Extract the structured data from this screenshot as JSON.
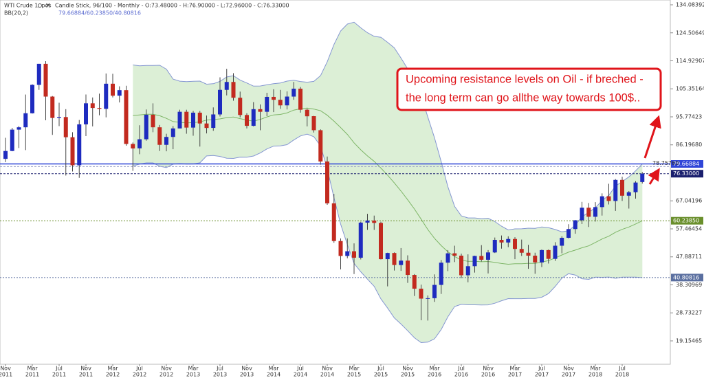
{
  "header": {
    "instrument": "WTI Crude 1, pos",
    "info": "Candle Stick, 96/100 - Monthly - O:73.48000 - H:76.90000 - L:72.96000 - C:76.33000",
    "indicator": "BB(20,2)",
    "indicator_values": "79.66884/60.23850/40.80816"
  },
  "chart_data": {
    "type": "candlestick",
    "open": [
      81.4,
      84.1,
      91.4,
      92.2,
      97.0,
      106.7,
      113.9,
      102.7,
      95.4,
      95.7,
      88.8,
      79.2,
      93.2,
      100.4,
      98.8,
      98.5,
      107.1,
      103.0,
      104.9,
      86.5,
      85.0,
      88.1,
      96.5,
      92.2,
      86.2,
      88.9,
      91.8,
      97.5,
      92.1,
      97.2,
      93.5,
      92.0,
      96.6,
      105.0,
      107.7,
      102.3,
      96.4,
      92.7,
      98.4,
      97.5,
      102.6,
      101.6,
      99.7,
      102.7,
      105.4,
      98.2,
      96.0,
      91.2,
      80.5,
      66.2,
      53.3,
      48.2,
      49.8,
      47.6,
      59.6,
      60.3,
      59.5,
      47.1,
      49.2,
      45.1,
      46.6,
      41.7,
      37.0,
      33.6,
      33.75,
      38.3,
      45.9,
      49.1,
      48.3,
      41.6,
      44.7,
      48.2,
      46.9,
      49.4,
      53.7,
      52.8,
      54.0,
      50.6,
      49.3,
      48.3,
      46.0,
      50.2,
      47.2,
      51.7,
      54.4,
      57.4,
      60.4,
      64.7,
      61.6,
      64.9,
      68.6,
      67.0,
      74.2,
      68.8,
      70.0,
      73.48
    ],
    "high": [
      88.6,
      92.0,
      92.6,
      103.4,
      106.9,
      113.9,
      114.8,
      102.9,
      100.6,
      98.4,
      90.5,
      94.7,
      103.4,
      102.4,
      103.7,
      110.6,
      110.5,
      106.2,
      106.4,
      87.0,
      92.9,
      98.3,
      100.4,
      93.0,
      90.0,
      92.6,
      98.2,
      98.2,
      97.8,
      97.8,
      96.2,
      99.0,
      109.3,
      112.2,
      110.7,
      104.4,
      97.0,
      100.8,
      100.0,
      104.0,
      105.2,
      104.99,
      104.5,
      107.7,
      106.0,
      98.6,
      96.1,
      91.5,
      82.2,
      69.4,
      54.2,
      54.2,
      52.5,
      59.9,
      62.6,
      62.0,
      59.9,
      49.3,
      49.4,
      50.9,
      48.4,
      42.0,
      38.4,
      34.7,
      41.9,
      46.8,
      50.2,
      51.7,
      49.0,
      48.75,
      48.3,
      51.9,
      50.2,
      54.5,
      55.2,
      54.9,
      54.6,
      53.8,
      52.0,
      49.3,
      50.4,
      50.4,
      52.9,
      54.9,
      59.05,
      60.5,
      66.7,
      66.3,
      66.6,
      69.6,
      72.9,
      74.5,
      75.3,
      70.4,
      73.8,
      76.9
    ],
    "low": [
      80.3,
      84.0,
      85.1,
      84.4,
      96.9,
      105.0,
      94.6,
      89.6,
      92.6,
      75.7,
      77.1,
      74.9,
      89.2,
      92.5,
      96.3,
      95.6,
      102.4,
      100.7,
      85.9,
      77.3,
      83.0,
      87.6,
      90.5,
      84.1,
      84.0,
      84.7,
      91.8,
      90.0,
      89.3,
      85.6,
      90.1,
      91.0,
      95.9,
      103.1,
      101.3,
      95.6,
      91.8,
      92.5,
      91.2,
      96.0,
      97.4,
      98.5,
      98.3,
      101.6,
      97.2,
      92.5,
      90.4,
      79.4,
      65.7,
      52.7,
      43.6,
      47.4,
      42.0,
      47.0,
      57.1,
      57.1,
      47.0,
      37.8,
      43.2,
      43.1,
      38.99,
      34.5,
      26.2,
      26.1,
      32.5,
      35.2,
      43.0,
      46.1,
      40.6,
      39.2,
      42.5,
      46.3,
      42.2,
      49.2,
      50.7,
      51.2,
      47.1,
      48.2,
      43.8,
      42.1,
      44.4,
      45.6,
      46.5,
      49.1,
      54.2,
      55.8,
      59.1,
      58.1,
      59.95,
      62.0,
      65.8,
      63.6,
      67.0,
      64.4,
      67.8,
      72.96
    ],
    "close": [
      84.1,
      91.4,
      92.2,
      97.0,
      106.7,
      113.9,
      102.7,
      95.4,
      95.7,
      88.8,
      79.2,
      93.2,
      100.4,
      98.8,
      98.5,
      107.1,
      103.0,
      104.9,
      86.5,
      84.96,
      88.1,
      96.5,
      92.2,
      86.2,
      88.9,
      91.8,
      97.5,
      92.1,
      97.2,
      93.5,
      91.97,
      96.6,
      105.0,
      107.7,
      102.3,
      96.4,
      92.7,
      98.4,
      97.5,
      102.6,
      101.6,
      99.7,
      102.7,
      105.4,
      98.2,
      95.96,
      91.2,
      80.5,
      66.2,
      53.3,
      48.2,
      49.8,
      47.6,
      59.6,
      60.3,
      59.5,
      47.1,
      49.2,
      45.1,
      46.6,
      41.7,
      37.0,
      33.6,
      33.75,
      38.3,
      45.9,
      49.1,
      48.3,
      41.6,
      44.7,
      48.2,
      46.9,
      49.4,
      53.7,
      52.8,
      54.0,
      50.6,
      49.3,
      48.3,
      46.0,
      50.2,
      47.2,
      51.7,
      54.4,
      57.4,
      60.4,
      64.7,
      61.6,
      64.9,
      68.6,
      67.0,
      74.2,
      68.8,
      70.0,
      73.3,
      76.33
    ],
    "up_color": "#1e2bbf",
    "down_color": "#c22a1f",
    "x_labels": [
      {
        "month": "Nov",
        "year": "2011"
      },
      {
        "month": "Mar",
        "year": "2011"
      },
      {
        "month": "Jul",
        "year": "2011"
      },
      {
        "month": "Nov",
        "year": "2011"
      },
      {
        "month": "Mar",
        "year": "2012"
      },
      {
        "month": "Jul",
        "year": "2012"
      },
      {
        "month": "Nov",
        "year": "2012"
      },
      {
        "month": "Mar",
        "year": "2013"
      },
      {
        "month": "Jul",
        "year": "2013"
      },
      {
        "month": "Nov",
        "year": "2013"
      },
      {
        "month": "Mar",
        "year": "2014"
      },
      {
        "month": "Jul",
        "year": "2014"
      },
      {
        "month": "Nov",
        "year": "2014"
      },
      {
        "month": "Mar",
        "year": "2015"
      },
      {
        "month": "Jul",
        "year": "2015"
      },
      {
        "month": "Nov",
        "year": "2015"
      },
      {
        "month": "Mar",
        "year": "2016"
      },
      {
        "month": "Jul",
        "year": "2016"
      },
      {
        "month": "Nov",
        "year": "2016"
      },
      {
        "month": "Mar",
        "year": "2017"
      },
      {
        "month": "Jul",
        "year": "2017"
      },
      {
        "month": "Nov",
        "year": "2017"
      },
      {
        "month": "Mar",
        "year": "2018"
      },
      {
        "month": "Jul",
        "year": "2018"
      }
    ],
    "ylim": [
      11.16,
      135.73
    ],
    "yticks": [
      134.08392,
      124.50649,
      114.92907,
      105.35164,
      95.77423,
      {
        "value": 86.1968,
        "label": "86.19680"
      },
      67.04196,
      57.46454,
      47.88711,
      38.30969,
      28.73227,
      19.15465
    ],
    "bollinger": {
      "period": 20,
      "deviations": 2,
      "fill": "#dcefd6",
      "band_color": "#8496d2",
      "mid_color": "#7db566"
    },
    "levels": [
      {
        "value": 79.66884,
        "color": "#2f45d8",
        "style": "solid",
        "box": true
      },
      {
        "value": 78.7576,
        "label": "78.75760",
        "color": "#9aa0c8",
        "style": "dashed",
        "box": false
      },
      {
        "value": 76.33,
        "label": "76.33000",
        "color": "#1a1f6e",
        "style": "dashed",
        "box": true
      },
      {
        "value": 60.2385,
        "label": "60.23850",
        "color": "#6a8f2c",
        "style": "dotted",
        "box": true
      },
      {
        "value": 40.80816,
        "color": "#5a6fa0",
        "style": "dotted",
        "box": true
      }
    ],
    "annotation": [
      "Upcoming resistance levels on Oil - if breched -",
      "the long term can go allthe way towards 100$.."
    ]
  }
}
